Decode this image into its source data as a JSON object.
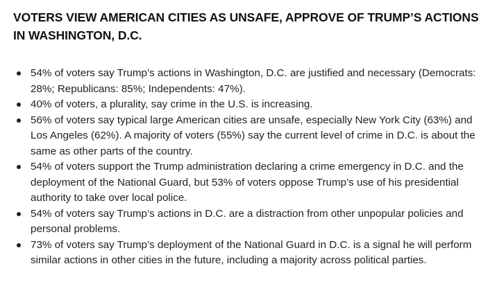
{
  "headline": "VOTERS VIEW AMERICAN CITIES AS UNSAFE, APPROVE OF TRUMP’S ACTIONS IN WASHINGTON, D.C.",
  "bullets": [
    "54% of voters say Trump’s actions in Washington, D.C. are justified and necessary (Democrats: 28%; Republicans: 85%; Independents: 47%).",
    "40% of voters, a plurality, say crime in the U.S. is increasing.",
    "56% of voters say typical large American cities are unsafe, especially New York City (63%) and Los Angeles (62%). A majority of voters (55%) say the current level of crime in D.C. is about the same as other parts of the country.",
    "54% of voters support the Trump administration declaring a crime emergency in D.C. and the deployment of the National Guard, but 53% of voters oppose Trump’s use of his presidential authority to take over local police.",
    "54% of voters say Trump’s actions in D.C. are a distraction from other unpopular policies and personal problems.",
    "73% of voters say Trump’s deployment of the National Guard in D.C. is a signal he will perform similar actions in other cities in the future, including a majority across political parties."
  ]
}
